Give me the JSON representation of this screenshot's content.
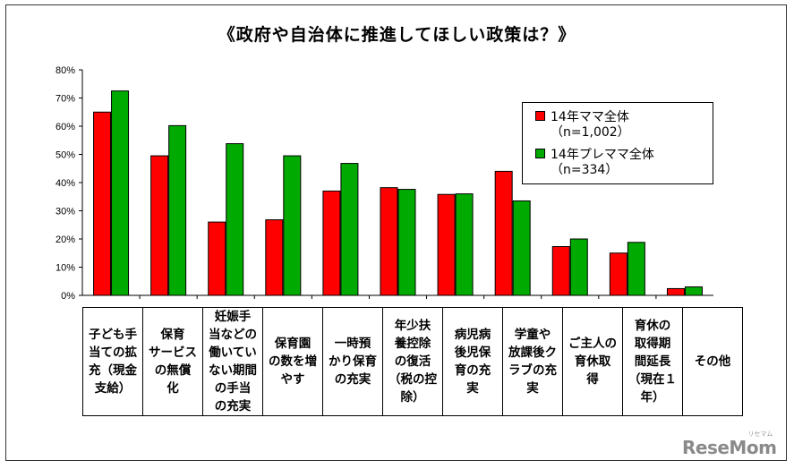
{
  "chart_data": {
    "type": "bar",
    "title": "《政府や自治体に推進してほしい政策は？》",
    "xlabel": "",
    "ylabel": "",
    "ylim": [
      0,
      80
    ],
    "yticks": [
      "0%",
      "10%",
      "20%",
      "30%",
      "40%",
      "50%",
      "60%",
      "70%",
      "80%"
    ],
    "grid": false,
    "legend_position": "top-right",
    "categories": [
      "子ども手当ての拡充（現金支給）",
      "保育サービスの無償化",
      "妊娠手当などの働いていない期間の手当の充実",
      "保育園の数を増やす",
      "一時預かり保育の充実",
      "年少扶養控除の復活（税の控除）",
      "病児病後児保育の充実",
      "学童や放課後クラブの充実",
      "ご主人の育休取得",
      "育休の取得期間延長（現在1年）",
      "その他"
    ],
    "category_labels": [
      "子ども手\n当ての拡\n充（現金\n支給）",
      "保育\nサービス\nの無償\n化",
      "妊娠手\n当などの\n働いてい\nない期間\nの手当\nの充実",
      "保育園\nの数を増\nやす",
      "一時預\nかり保育\nの充実",
      "年少扶\n養控除\nの復活\n（税の控\n除）",
      "病児病\n後児保\n育の充\n実",
      "学童や\n放課後ク\nラブの充\n実",
      "ご主人の\n育休取\n得",
      "育休の\n取得期\n間延長\n（現在１\n年）",
      "その他"
    ],
    "series": [
      {
        "name": "14年ママ全体",
        "note": "（n=1,002）",
        "color": "#ff0000",
        "values": [
          65,
          49.5,
          26,
          26.8,
          37,
          38.2,
          35.8,
          44,
          17.3,
          15,
          2.4
        ]
      },
      {
        "name": "14年プレママ全体",
        "note": "（n=334）",
        "color": "#00aa00",
        "values": [
          72.5,
          60.2,
          53.8,
          49.5,
          46.8,
          37.6,
          36,
          33.5,
          20,
          18.8,
          3
        ]
      }
    ]
  },
  "watermark": {
    "text": "ReseMom",
    "sub": "リセマム"
  }
}
